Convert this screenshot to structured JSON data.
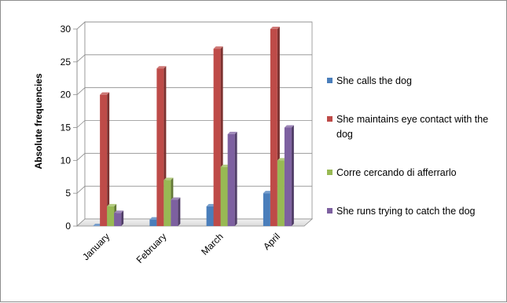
{
  "chart_data": {
    "type": "bar",
    "title": "",
    "xlabel": "",
    "ylabel": "Absolute frequencies",
    "ylim": [
      0,
      30
    ],
    "yticks": [
      "0",
      "5",
      "10",
      "15",
      "20",
      "25",
      "30"
    ],
    "categories": [
      "January",
      "February",
      "March",
      "April"
    ],
    "series": [
      {
        "name": "She calls the dog",
        "values": [
          0,
          1,
          3,
          5
        ],
        "color": "#4a7ebb"
      },
      {
        "name": "She maintains eye contact with the dog",
        "values": [
          20,
          24,
          27,
          30
        ],
        "color": "#be4b48"
      },
      {
        "name": "Corre cercando di afferrarlo",
        "values": [
          3,
          7,
          9,
          10
        ],
        "color": "#98b954"
      },
      {
        "name": "She runs trying to catch the dog",
        "values": [
          2,
          4,
          14,
          15
        ],
        "color": "#7d60a0"
      }
    ],
    "grid": true,
    "legend_position": "right",
    "style": "3d-column"
  }
}
